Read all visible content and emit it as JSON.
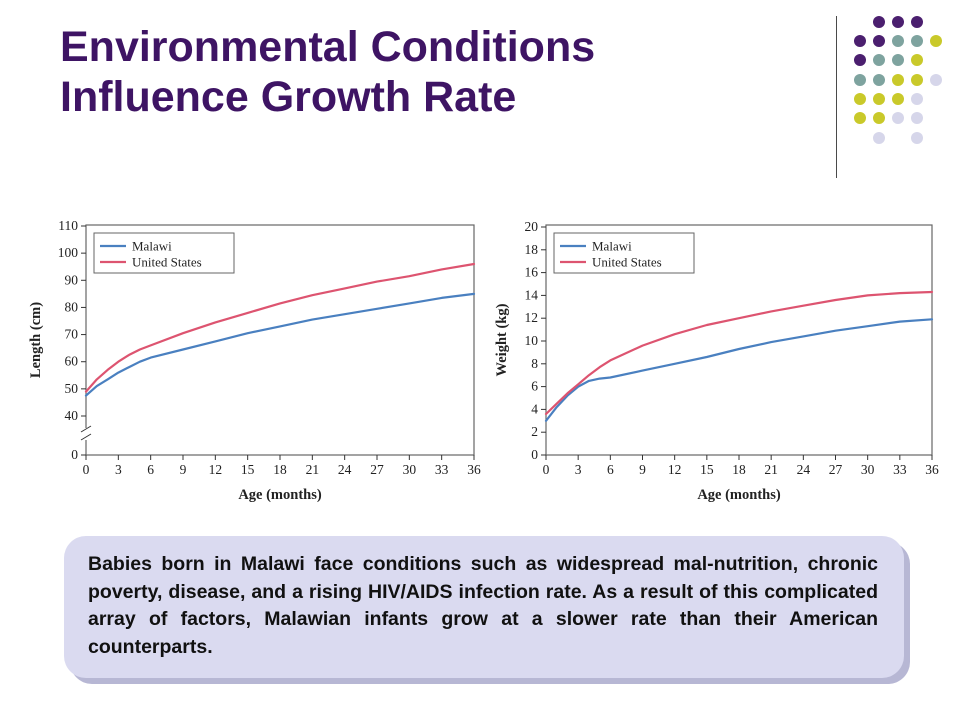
{
  "slide": {
    "title_line1": "Environmental Conditions",
    "title_line2": "Influence Growth Rate",
    "caption": "Babies born in Malawi face conditions such as widespread mal-nutrition, chronic poverty, disease, and a rising HIV/AIDS infection rate. As a result of this complicated array of factors, Malawian infants grow at a slower rate than their American counterparts.",
    "accent_colors": {
      "title": "#3e1464",
      "dot_purple": "#4b1f6f",
      "dot_teal": "#7ea39f",
      "dot_olive": "#c9c92a",
      "dot_lavender": "#d6d6ea",
      "caption_bg": "#dadaf0"
    }
  },
  "chart_data": [
    {
      "type": "line",
      "xlabel": "Age (months)",
      "ylabel": "Length (cm)",
      "xlim": [
        0,
        36
      ],
      "ylim": [
        0,
        110
      ],
      "axis_break": [
        0,
        40
      ],
      "x_ticks": [
        0,
        3,
        6,
        9,
        12,
        15,
        18,
        21,
        24,
        27,
        30,
        33,
        36
      ],
      "y_ticks": [
        0,
        40,
        50,
        60,
        70,
        80,
        90,
        100,
        110
      ],
      "legend_position": "top-left",
      "series": [
        {
          "name": "Malawi",
          "color": "#4a80c0",
          "x": [
            0,
            1,
            2,
            3,
            4,
            5,
            6,
            9,
            12,
            15,
            18,
            21,
            24,
            27,
            30,
            33,
            36
          ],
          "y": [
            47.5,
            51,
            53.5,
            56,
            58,
            60,
            61.5,
            64.5,
            67.5,
            70.5,
            73,
            75.5,
            77.5,
            79.5,
            81.5,
            83.5,
            85
          ]
        },
        {
          "name": "United States",
          "color": "#dd5470",
          "x": [
            0,
            1,
            2,
            3,
            4,
            5,
            6,
            9,
            12,
            15,
            18,
            21,
            24,
            27,
            30,
            33,
            36
          ],
          "y": [
            49,
            53.5,
            57,
            60,
            62.5,
            64.5,
            66,
            70.5,
            74.5,
            78,
            81.5,
            84.5,
            87,
            89.5,
            91.5,
            94,
            96
          ]
        }
      ]
    },
    {
      "type": "line",
      "xlabel": "Age (months)",
      "ylabel": "Weight (kg)",
      "xlim": [
        0,
        36
      ],
      "ylim": [
        0,
        20
      ],
      "x_ticks": [
        0,
        3,
        6,
        9,
        12,
        15,
        18,
        21,
        24,
        27,
        30,
        33,
        36
      ],
      "y_ticks": [
        0,
        2,
        4,
        6,
        8,
        10,
        12,
        14,
        16,
        18,
        20
      ],
      "legend_position": "top-left",
      "series": [
        {
          "name": "Malawi",
          "color": "#4a80c0",
          "x": [
            0,
            1,
            2,
            3,
            4,
            5,
            6,
            9,
            12,
            15,
            18,
            21,
            24,
            27,
            30,
            33,
            36
          ],
          "y": [
            3,
            4.2,
            5.2,
            6,
            6.5,
            6.7,
            6.8,
            7.4,
            8,
            8.6,
            9.3,
            9.9,
            10.4,
            10.9,
            11.3,
            11.7,
            11.9
          ]
        },
        {
          "name": "United States",
          "color": "#dd5470",
          "x": [
            0,
            1,
            2,
            3,
            4,
            5,
            6,
            9,
            12,
            15,
            18,
            21,
            24,
            27,
            30,
            33,
            36
          ],
          "y": [
            3.6,
            4.5,
            5.4,
            6.2,
            7,
            7.7,
            8.3,
            9.6,
            10.6,
            11.4,
            12,
            12.6,
            13.1,
            13.6,
            14,
            14.2,
            14.3
          ]
        }
      ]
    }
  ]
}
